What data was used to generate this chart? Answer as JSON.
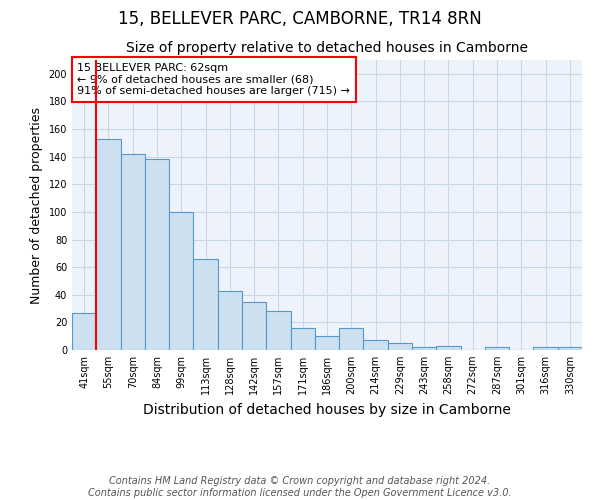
{
  "title": "15, BELLEVER PARC, CAMBORNE, TR14 8RN",
  "subtitle": "Size of property relative to detached houses in Camborne",
  "xlabel": "Distribution of detached houses by size in Camborne",
  "ylabel": "Number of detached properties",
  "categories": [
    "41sqm",
    "55sqm",
    "70sqm",
    "84sqm",
    "99sqm",
    "113sqm",
    "128sqm",
    "142sqm",
    "157sqm",
    "171sqm",
    "186sqm",
    "200sqm",
    "214sqm",
    "229sqm",
    "243sqm",
    "258sqm",
    "272sqm",
    "287sqm",
    "301sqm",
    "316sqm",
    "330sqm"
  ],
  "values": [
    27,
    153,
    142,
    138,
    100,
    66,
    43,
    35,
    28,
    16,
    10,
    16,
    7,
    5,
    2,
    3,
    0,
    2,
    0,
    2,
    2
  ],
  "bar_color": "#cce0f0",
  "bar_edge_color": "#5599cc",
  "red_line_index": 1,
  "annotation_text": "15 BELLEVER PARC: 62sqm\n← 9% of detached houses are smaller (68)\n91% of semi-detached houses are larger (715) →",
  "annotation_box_color": "white",
  "annotation_box_edge": "red",
  "ylim": [
    0,
    210
  ],
  "yticks": [
    0,
    20,
    40,
    60,
    80,
    100,
    120,
    140,
    160,
    180,
    200
  ],
  "footnote": "Contains HM Land Registry data © Crown copyright and database right 2024.\nContains public sector information licensed under the Open Government Licence v3.0.",
  "fig_background_color": "#ffffff",
  "plot_background_color": "#eef3fb",
  "grid_color": "#c8d8e8",
  "title_fontsize": 12,
  "subtitle_fontsize": 10,
  "annotation_fontsize": 8,
  "ylabel_fontsize": 9,
  "xlabel_fontsize": 10,
  "tick_fontsize": 7,
  "footnote_fontsize": 7
}
